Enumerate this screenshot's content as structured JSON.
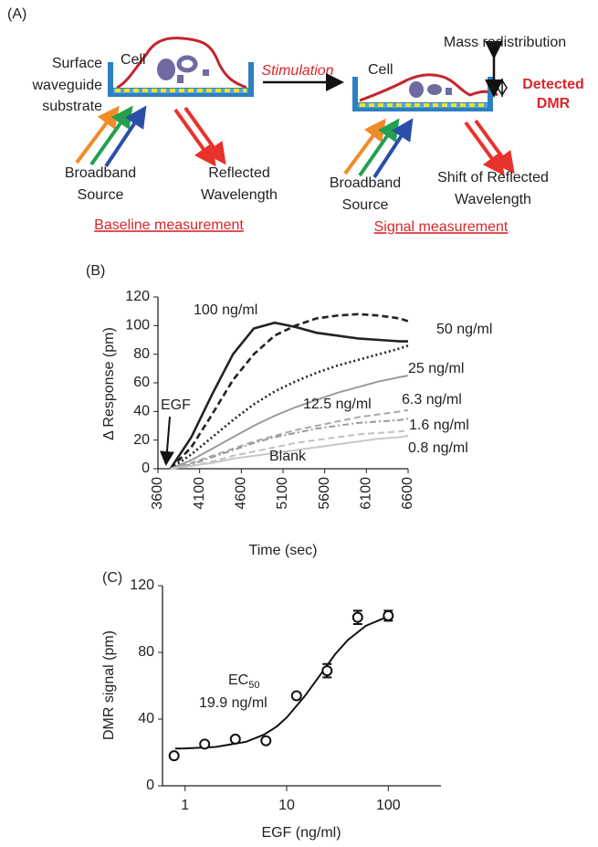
{
  "panel_a": {
    "label": "(A)",
    "left": {
      "cell": "Cell",
      "substrate": [
        "Surface",
        "waveguide",
        "substrate"
      ],
      "source": [
        "Broadband",
        "Source"
      ],
      "reflected": [
        "Reflected",
        "Wavelength"
      ],
      "caption": "Baseline measurement"
    },
    "stimulation": "Stimulation",
    "right": {
      "cell": "Cell",
      "mass": "Mass redistribution",
      "detected": [
        "Detected",
        "DMR"
      ],
      "source": [
        "Broadband",
        "Source"
      ],
      "reflected": [
        "Shift of Reflected",
        "Wavelength"
      ],
      "caption": "Signal measurement"
    }
  },
  "chart_data": [
    {
      "type": "line",
      "label": "(B)",
      "x_label": "Time (sec)",
      "y_label": "Δ Response (pm)",
      "annotation": "EGF",
      "x": [
        3750,
        4000,
        4250,
        4500,
        4750,
        5000,
        5250,
        5500,
        5750,
        6000,
        6250,
        6500,
        6600
      ],
      "xlim": [
        3600,
        6600
      ],
      "xticks": [
        3600,
        4100,
        4600,
        5100,
        5600,
        6100,
        6600
      ],
      "ylim": [
        0,
        120
      ],
      "yticks": [
        0,
        20,
        40,
        60,
        80,
        100,
        120
      ],
      "series": [
        {
          "name": "100 ng/ml",
          "color": "#222222",
          "dash": "solid",
          "values": [
            0,
            22,
            52,
            80,
            98,
            102,
            99,
            95,
            93,
            91,
            90,
            89,
            89
          ]
        },
        {
          "name": "50 ng/ml",
          "color": "#222222",
          "dash": "dashed",
          "values": [
            0,
            15,
            38,
            62,
            80,
            93,
            100,
            105,
            107,
            108,
            107,
            105,
            103
          ]
        },
        {
          "name": "25 ng/ml",
          "color": "#222222",
          "dash": "dotted",
          "values": [
            0,
            10,
            22,
            34,
            45,
            54,
            61,
            67,
            72,
            76,
            80,
            84,
            86
          ]
        },
        {
          "name": "12.5 ng/ml",
          "color": "#9a9a9a",
          "dash": "solid",
          "values": [
            0,
            6,
            14,
            22,
            30,
            37,
            43,
            48,
            53,
            57,
            61,
            64,
            65
          ]
        },
        {
          "name": "6.3 ng/ml",
          "color": "#a8a8a8",
          "dash": "dashed",
          "values": [
            0,
            4,
            9,
            14,
            19,
            23,
            27,
            30,
            33,
            36,
            38,
            40,
            41
          ]
        },
        {
          "name": "1.6 ng/ml",
          "color": "#9a9a9a",
          "dash": "dashdot",
          "values": [
            0,
            3,
            8,
            13,
            18,
            22,
            25,
            28,
            30,
            32,
            33,
            34,
            35
          ]
        },
        {
          "name": "0.8 ng/ml",
          "color": "#c0c0c0",
          "dash": "dashed",
          "values": [
            0,
            2,
            5,
            9,
            12,
            15,
            18,
            20,
            22,
            24,
            25,
            26,
            27
          ]
        },
        {
          "name": "Blank",
          "color": "#c8c8c8",
          "dash": "solid",
          "values": [
            0,
            2,
            4,
            7,
            9,
            11,
            13,
            15,
            17,
            19,
            21,
            22,
            23
          ]
        }
      ]
    },
    {
      "type": "scatter",
      "label": "(C)",
      "x_label": "EGF (ng/ml)",
      "y_label": "DMR signal (pm)",
      "annotation": {
        "ec": "EC",
        "ec_sub": "50",
        "value": "19.9 ng/ml"
      },
      "xscale": "log",
      "xlim": [
        0.6,
        330
      ],
      "xticks": [
        1,
        10,
        100
      ],
      "ylim": [
        0,
        120
      ],
      "yticks": [
        0,
        40,
        80,
        120
      ],
      "x": [
        0.78,
        1.56,
        3.125,
        6.25,
        12.5,
        25,
        50,
        100
      ],
      "values": [
        18,
        25,
        28,
        27,
        54,
        69,
        101,
        102
      ],
      "errors": [
        0,
        0,
        0,
        0,
        0,
        4,
        4,
        3
      ],
      "color": "#111111",
      "fit": {
        "x": [
          0.8,
          1,
          2,
          4,
          6,
          8,
          10,
          15,
          20,
          30,
          40,
          60,
          100
        ],
        "values": [
          22.3,
          22.4,
          23.3,
          26.4,
          30.7,
          35.6,
          40.9,
          53.6,
          64,
          78.9,
          87.4,
          95.9,
          101.6
        ]
      }
    }
  ]
}
